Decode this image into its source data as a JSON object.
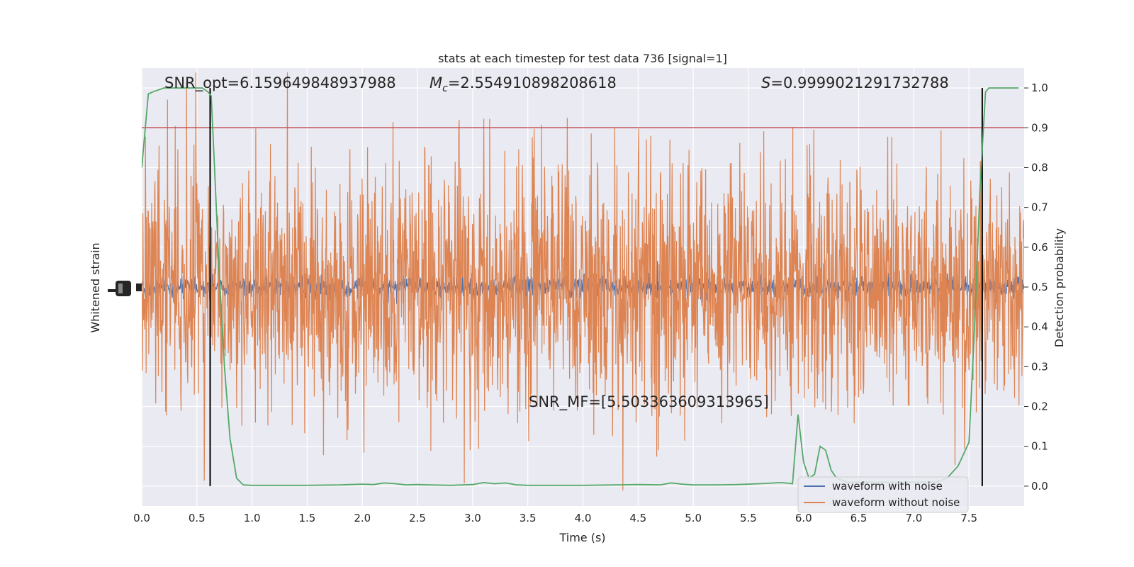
{
  "chart_data": {
    "type": "line",
    "title": "stats at each timestep for test data 736 [signal=1]",
    "xlabel": "Time (s)",
    "ylabel": "Whitened strain",
    "y2label": "Detection probability",
    "xlim": [
      0.0,
      8.0
    ],
    "ylim": [
      -1.0,
      1.0
    ],
    "y2lim": [
      -0.05,
      1.05
    ],
    "xticks": [
      "0.0",
      "0.5",
      "1.0",
      "1.5",
      "2.0",
      "2.5",
      "3.0",
      "3.5",
      "4.0",
      "4.5",
      "5.0",
      "5.5",
      "6.0",
      "6.5",
      "7.0",
      "7.5"
    ],
    "y2ticks": [
      "0.0",
      "0.1",
      "0.2",
      "0.3",
      "0.4",
      "0.5",
      "0.6",
      "0.7",
      "0.8",
      "0.9",
      "1.0"
    ],
    "grid": true,
    "legend_position": "lower-right",
    "annotations": {
      "snr_opt": "SNR_opt=6.159649848937988",
      "mc_symbol": "M",
      "mc_sub": "c",
      "mc_value": "=2.554910898208618",
      "s_symbol": "S",
      "s_value": "=0.9999021291732788",
      "snr_mf": "SNR_MF=[5.503363609313965]"
    },
    "threshold": {
      "y2": 0.9,
      "color": "#c44e52"
    },
    "vertical_markers": [
      0.62,
      7.62
    ],
    "series": [
      {
        "name": "waveform with noise",
        "color": "#4c72b0",
        "kind": "noise-strain",
        "amplitude": 0.08
      },
      {
        "name": "waveform without noise",
        "color": "#dd8452",
        "kind": "noise-strain",
        "amplitude": 1.0
      },
      {
        "kind": "probability",
        "color": "#55a868",
        "x": [
          0.0,
          0.06,
          0.1,
          0.2,
          0.3,
          0.4,
          0.5,
          0.55,
          0.6,
          0.63,
          0.66,
          0.7,
          0.75,
          0.8,
          0.86,
          0.92,
          1.0,
          1.2,
          1.5,
          1.8,
          2.0,
          2.1,
          2.2,
          2.3,
          2.4,
          2.5,
          2.6,
          2.8,
          3.0,
          3.1,
          3.2,
          3.3,
          3.4,
          3.5,
          3.7,
          4.0,
          4.3,
          4.5,
          4.7,
          4.8,
          4.9,
          5.0,
          5.2,
          5.4,
          5.6,
          5.8,
          5.9,
          5.95,
          6.0,
          6.05,
          6.1,
          6.15,
          6.2,
          6.25,
          6.3,
          6.4,
          6.5,
          6.6,
          6.8,
          7.0,
          7.2,
          7.3,
          7.4,
          7.5,
          7.55,
          7.6,
          7.65,
          7.68,
          7.72,
          7.8,
          7.95
        ],
        "y": [
          0.8,
          0.985,
          0.99,
          1.0,
          1.0,
          1.0,
          1.0,
          1.0,
          0.99,
          0.98,
          0.8,
          0.55,
          0.3,
          0.12,
          0.02,
          0.003,
          0.002,
          0.002,
          0.002,
          0.003,
          0.005,
          0.004,
          0.008,
          0.006,
          0.003,
          0.004,
          0.003,
          0.002,
          0.004,
          0.009,
          0.006,
          0.008,
          0.003,
          0.002,
          0.002,
          0.002,
          0.003,
          0.004,
          0.003,
          0.008,
          0.005,
          0.003,
          0.003,
          0.004,
          0.006,
          0.009,
          0.006,
          0.18,
          0.06,
          0.02,
          0.03,
          0.1,
          0.09,
          0.04,
          0.02,
          0.01,
          0.01,
          0.01,
          0.01,
          0.01,
          0.01,
          0.02,
          0.05,
          0.11,
          0.4,
          0.75,
          0.99,
          1.0,
          1.0,
          1.0,
          1.0
        ]
      }
    ]
  }
}
